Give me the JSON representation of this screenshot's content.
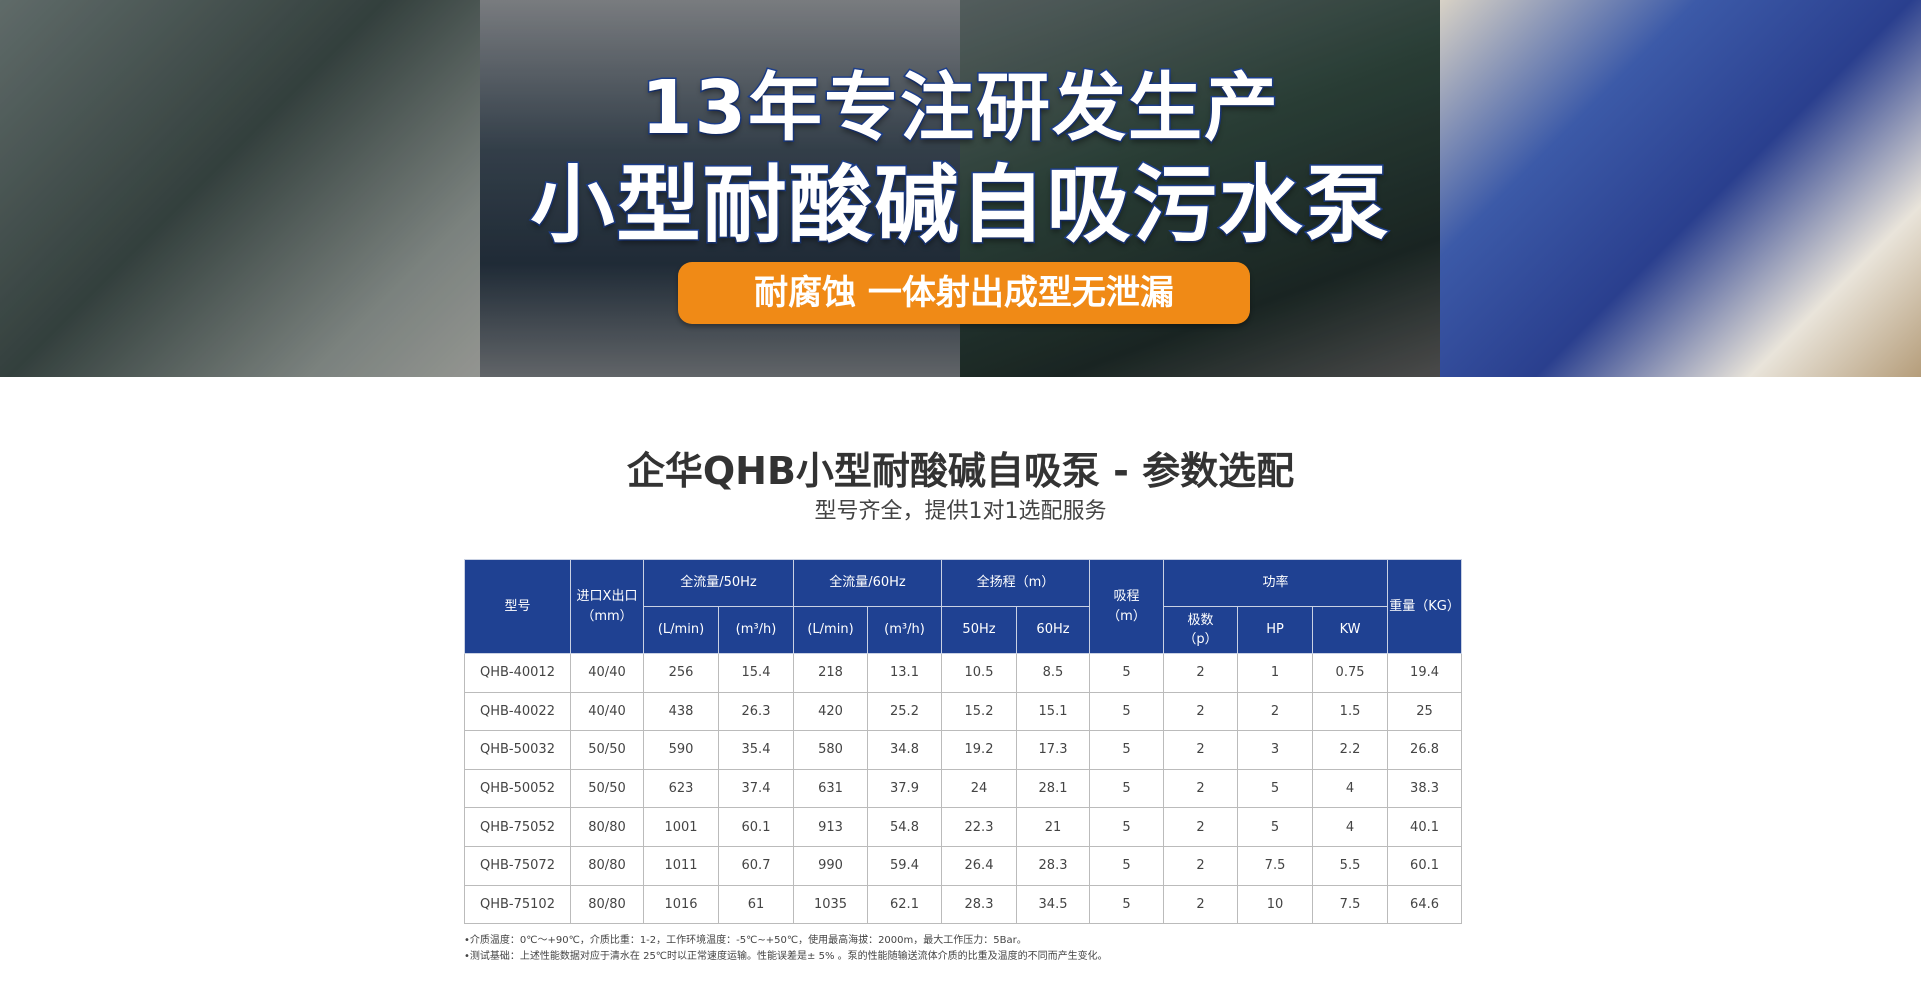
{
  "banner": {
    "line1": "13年专注研发生产",
    "line2": "小型耐酸碱自吸污水泵",
    "tagline": "耐腐蚀 一体射出成型无泄漏"
  },
  "section": {
    "title": "企华QHB小型耐酸碱自吸泵 - 参数选配",
    "subtitle": "型号齐全，提供1对1选配服务"
  },
  "table": {
    "headers": {
      "model": "型号",
      "port": "进口X出口",
      "port_unit": "（mm）",
      "flow50": "全流量/50Hz",
      "flow60": "全流量/60Hz",
      "head": "全扬程（m）",
      "suction": "吸程",
      "suction_unit": "（m）",
      "power": "功率",
      "weight": "重量（KG）",
      "lmin": "(L/min)",
      "m3h": "(m³/h)",
      "hz50": "50Hz",
      "hz60": "60Hz",
      "poles": "极数",
      "poles_unit": "（p）",
      "hp": "HP",
      "kw": "KW"
    },
    "rows": [
      [
        "QHB-40012",
        "40/40",
        "256",
        "15.4",
        "218",
        "13.1",
        "10.5",
        "8.5",
        "5",
        "2",
        "1",
        "0.75",
        "19.4"
      ],
      [
        "QHB-40022",
        "40/40",
        "438",
        "26.3",
        "420",
        "25.2",
        "15.2",
        "15.1",
        "5",
        "2",
        "2",
        "1.5",
        "25"
      ],
      [
        "QHB-50032",
        "50/50",
        "590",
        "35.4",
        "580",
        "34.8",
        "19.2",
        "17.3",
        "5",
        "2",
        "3",
        "2.2",
        "26.8"
      ],
      [
        "QHB-50052",
        "50/50",
        "623",
        "37.4",
        "631",
        "37.9",
        "24",
        "28.1",
        "5",
        "2",
        "5",
        "4",
        "38.3"
      ],
      [
        "QHB-75052",
        "80/80",
        "1001",
        "60.1",
        "913",
        "54.8",
        "22.3",
        "21",
        "5",
        "2",
        "5",
        "4",
        "40.1"
      ],
      [
        "QHB-75072",
        "80/80",
        "1011",
        "60.7",
        "990",
        "59.4",
        "26.4",
        "28.3",
        "5",
        "2",
        "7.5",
        "5.5",
        "60.1"
      ],
      [
        "QHB-75102",
        "80/80",
        "1016",
        "61",
        "1035",
        "62.1",
        "28.3",
        "34.5",
        "5",
        "2",
        "10",
        "7.5",
        "64.6"
      ]
    ]
  },
  "notes": [
    "•介质温度：0℃～+90℃，介质比重：1-2，工作环境温度：-5℃~+50℃，使用最高海拔：2000m，最大工作压力：5Bar。",
    "•测试基础：上述性能数据对应于清水在 25℃时以正常速度运输。性能误差是± 5% 。泵的性能随输送流体介质的比重及温度的不同而产生变化。"
  ]
}
